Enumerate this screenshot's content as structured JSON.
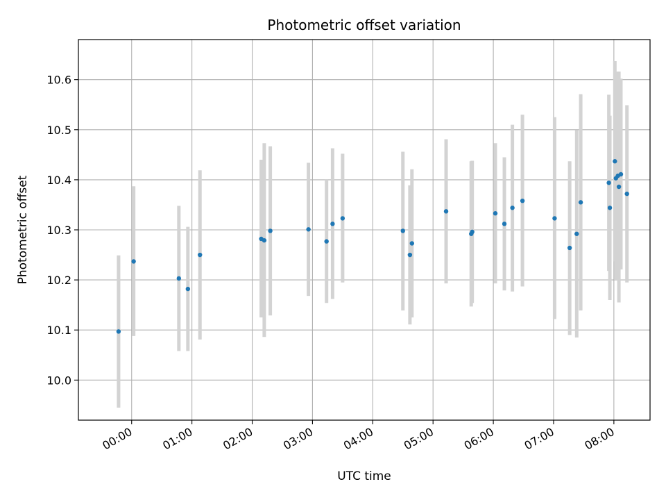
{
  "chart_data": {
    "type": "scatter",
    "title": "Photometric offset variation",
    "xlabel": "UTC time",
    "ylabel": "Photometric offset",
    "x_ticks": [
      "00:00",
      "01:00",
      "02:00",
      "03:00",
      "04:00",
      "05:00",
      "06:00",
      "07:00",
      "08:00"
    ],
    "y_ticks": [
      "10.0",
      "10.1",
      "10.2",
      "10.3",
      "10.4",
      "10.5",
      "10.6"
    ],
    "xlim": [
      "23:07",
      "08:36"
    ],
    "ylim": [
      9.92,
      10.68
    ],
    "grid": true,
    "colors": {
      "point": "#1f77b4",
      "errorbar": "#d3d3d3",
      "grid": "#b0b0b0",
      "axis": "#000000"
    },
    "points": [
      {
        "x": "23:47",
        "y": 10.097,
        "ylo": 9.945,
        "yhi": 10.249
      },
      {
        "x": "00:02",
        "y": 10.237,
        "ylo": 10.088,
        "yhi": 10.387
      },
      {
        "x": "00:47",
        "y": 10.203,
        "ylo": 10.058,
        "yhi": 10.348
      },
      {
        "x": "00:56",
        "y": 10.182,
        "ylo": 10.058,
        "yhi": 10.306
      },
      {
        "x": "01:08",
        "y": 10.25,
        "ylo": 10.081,
        "yhi": 10.419
      },
      {
        "x": "02:09",
        "y": 10.282,
        "ylo": 10.125,
        "yhi": 10.44
      },
      {
        "x": "02:12",
        "y": 10.279,
        "ylo": 10.086,
        "yhi": 10.473
      },
      {
        "x": "02:18",
        "y": 10.298,
        "ylo": 10.129,
        "yhi": 10.467
      },
      {
        "x": "02:56",
        "y": 10.301,
        "ylo": 10.168,
        "yhi": 10.434
      },
      {
        "x": "03:14",
        "y": 10.277,
        "ylo": 10.154,
        "yhi": 10.4
      },
      {
        "x": "03:20",
        "y": 10.312,
        "ylo": 10.162,
        "yhi": 10.463
      },
      {
        "x": "03:30",
        "y": 10.323,
        "ylo": 10.195,
        "yhi": 10.452
      },
      {
        "x": "04:30",
        "y": 10.298,
        "ylo": 10.139,
        "yhi": 10.456
      },
      {
        "x": "04:37",
        "y": 10.25,
        "ylo": 10.111,
        "yhi": 10.389
      },
      {
        "x": "04:39",
        "y": 10.273,
        "ylo": 10.125,
        "yhi": 10.421
      },
      {
        "x": "05:13",
        "y": 10.337,
        "ylo": 10.193,
        "yhi": 10.481
      },
      {
        "x": "05:38",
        "y": 10.292,
        "ylo": 10.147,
        "yhi": 10.437
      },
      {
        "x": "05:39",
        "y": 10.296,
        "ylo": 10.154,
        "yhi": 10.438
      },
      {
        "x": "06:02",
        "y": 10.333,
        "ylo": 10.193,
        "yhi": 10.473
      },
      {
        "x": "06:11",
        "y": 10.312,
        "ylo": 10.179,
        "yhi": 10.445
      },
      {
        "x": "06:19",
        "y": 10.344,
        "ylo": 10.177,
        "yhi": 10.51
      },
      {
        "x": "06:29",
        "y": 10.358,
        "ylo": 10.187,
        "yhi": 10.53
      },
      {
        "x": "07:01",
        "y": 10.323,
        "ylo": 10.122,
        "yhi": 10.525
      },
      {
        "x": "07:16",
        "y": 10.264,
        "ylo": 10.09,
        "yhi": 10.437
      },
      {
        "x": "07:23",
        "y": 10.292,
        "ylo": 10.085,
        "yhi": 10.499
      },
      {
        "x": "07:27",
        "y": 10.355,
        "ylo": 10.139,
        "yhi": 10.571
      },
      {
        "x": "07:55",
        "y": 10.394,
        "ylo": 10.218,
        "yhi": 10.57
      },
      {
        "x": "07:56",
        "y": 10.344,
        "ylo": 10.16,
        "yhi": 10.528
      },
      {
        "x": "08:01",
        "y": 10.437,
        "ylo": 10.237,
        "yhi": 10.637
      },
      {
        "x": "08:02",
        "y": 10.403,
        "ylo": 10.2,
        "yhi": 10.606
      },
      {
        "x": "08:04",
        "y": 10.408,
        "ylo": 10.202,
        "yhi": 10.616
      },
      {
        "x": "08:05",
        "y": 10.386,
        "ylo": 10.155,
        "yhi": 10.616
      },
      {
        "x": "08:07",
        "y": 10.411,
        "ylo": 10.221,
        "yhi": 10.602
      },
      {
        "x": "08:13",
        "y": 10.372,
        "ylo": 10.195,
        "yhi": 10.549
      }
    ]
  }
}
